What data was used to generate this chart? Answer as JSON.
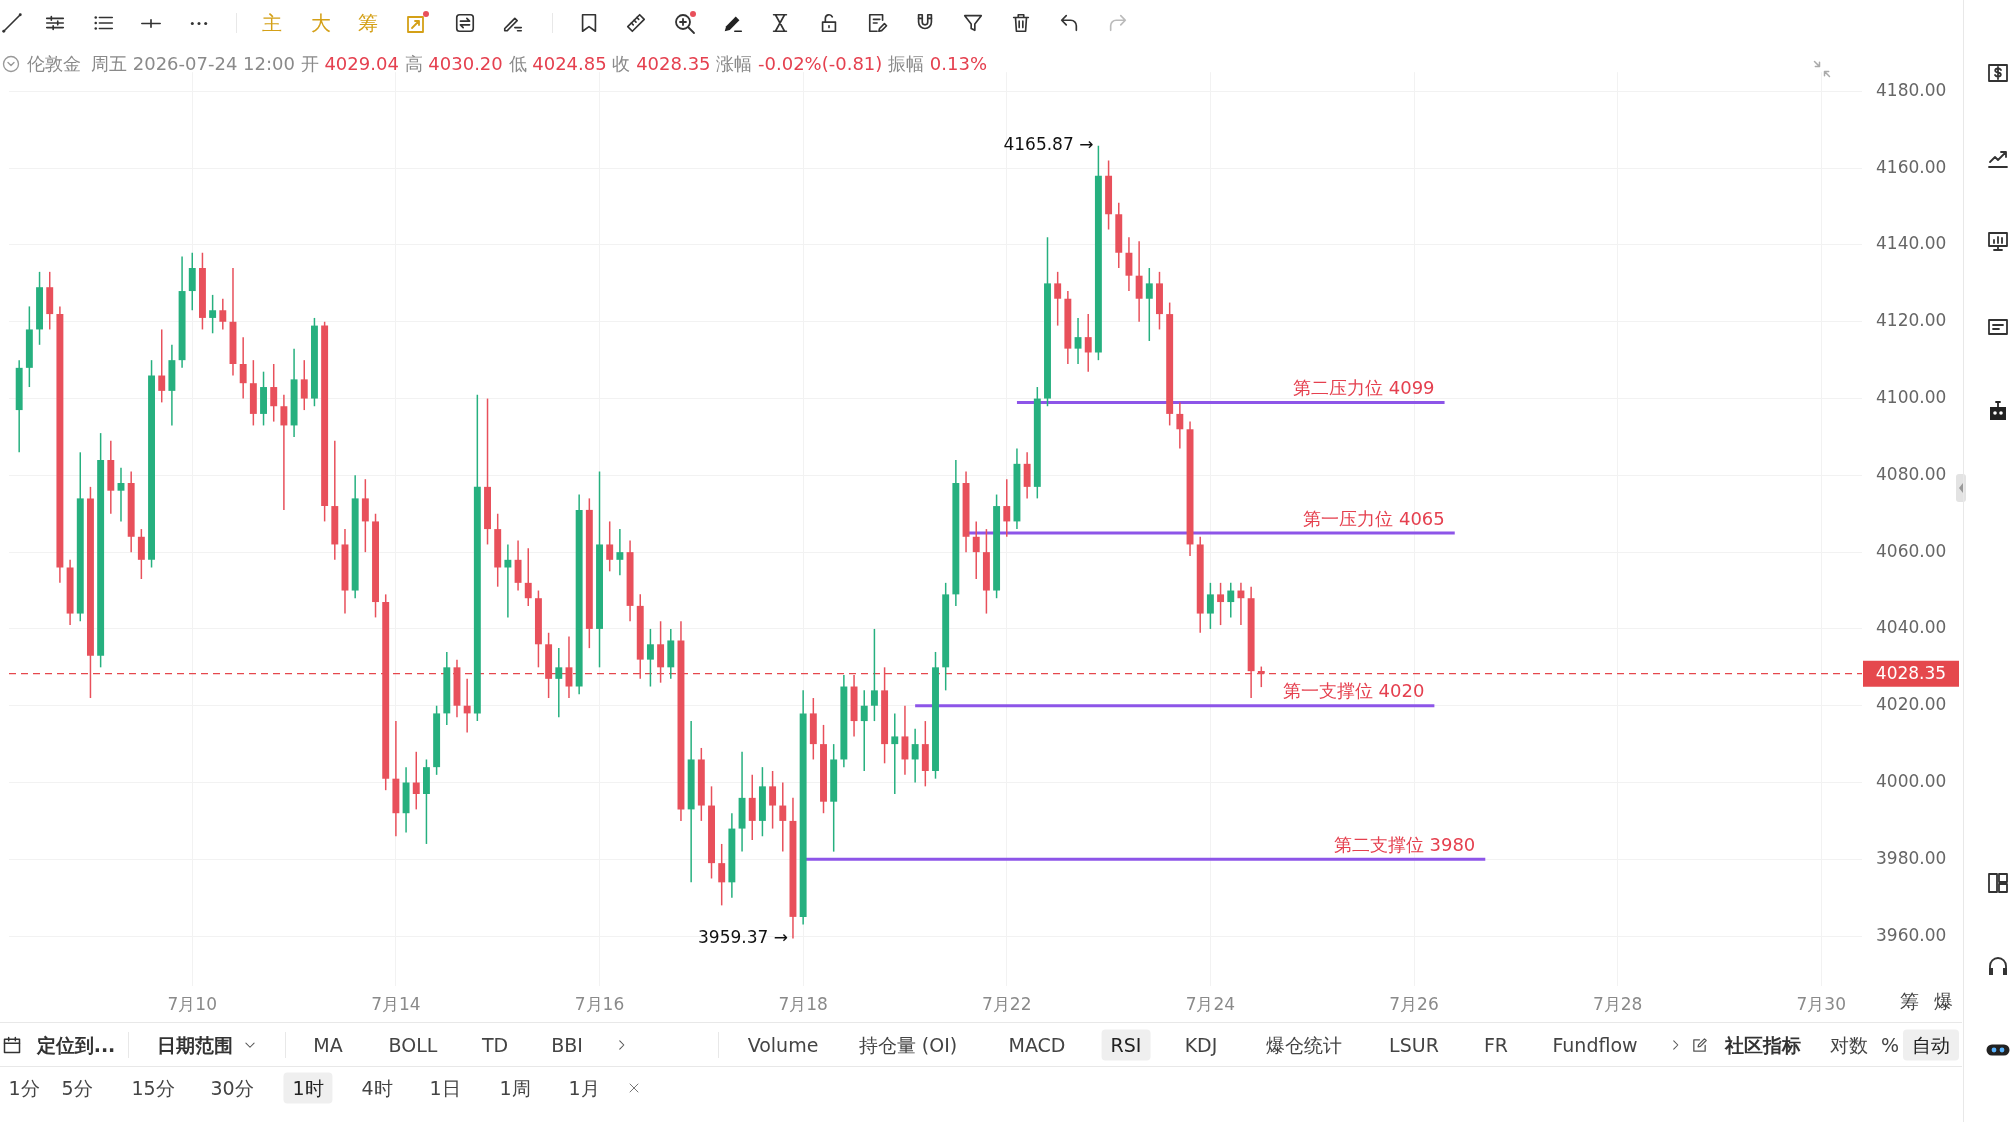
{
  "chart_data": {
    "type": "candlestick",
    "title": "伦敦金",
    "subtitle": "周五 2026-07-24 12:00 开 4029.04 高 4030.20 低 4024.85 收 4028.35 涨幅 -0.02%(-0.81) 振幅 0.13%",
    "categories": [
      null,
      null,
      null,
      null,
      null,
      null,
      null,
      null,
      null,
      null,
      null,
      null,
      null,
      null,
      null,
      null,
      null,
      null,
      "7月10",
      null,
      null,
      null,
      null,
      null,
      null,
      null,
      null,
      null,
      null,
      null,
      null,
      null,
      null,
      null,
      null,
      null,
      null,
      null,
      "7月14",
      null,
      null,
      null,
      null,
      null,
      null,
      null,
      null,
      null,
      null,
      null,
      null,
      null,
      null,
      null,
      null,
      null,
      null,
      null,
      "7月16",
      null,
      null,
      null,
      null,
      null,
      null,
      null,
      null,
      null,
      null,
      null,
      null,
      null,
      null,
      null,
      null,
      null,
      null,
      null,
      "7月18",
      null,
      null,
      null,
      null,
      null,
      null,
      null,
      null,
      null,
      null,
      null,
      null,
      null,
      null,
      null,
      null,
      null,
      null,
      null,
      "7月22",
      null,
      null,
      null,
      null,
      null,
      null,
      null,
      null,
      null,
      null,
      null,
      null,
      null,
      null,
      null,
      null,
      null,
      null,
      null,
      "7月24",
      null,
      null,
      null,
      null,
      null,
      null,
      null,
      null,
      null,
      null,
      null,
      null,
      null,
      null,
      null,
      null,
      null,
      null,
      null,
      "7月26",
      null,
      null,
      null,
      null,
      null,
      null,
      null,
      null,
      null,
      null,
      null,
      null,
      null,
      null,
      null,
      null,
      null,
      null,
      null,
      "7月28",
      null,
      null,
      null,
      null,
      null,
      null,
      null,
      null,
      null,
      null,
      null,
      null,
      null,
      null,
      null,
      null,
      null,
      null,
      null,
      "7月30",
      null,
      null,
      null,
      null
    ],
    "ohlc": [
      null,
      [
        4097,
        4110,
        4086,
        4108
      ],
      [
        4108,
        4124,
        4103,
        4118
      ],
      [
        4118,
        4133,
        4114,
        4129
      ],
      [
        4129,
        4133,
        4118,
        4122
      ],
      [
        4122,
        4124,
        4052,
        4056
      ],
      [
        4056,
        4058,
        4041,
        4044
      ],
      [
        4044,
        4086,
        4042,
        4074
      ],
      [
        4074,
        4077,
        4022,
        4033
      ],
      [
        4033,
        4091,
        4030,
        4084
      ],
      [
        4084,
        4089,
        4070,
        4076
      ],
      [
        4076,
        4082,
        4068,
        4078
      ],
      [
        4078,
        4081,
        4060,
        4064
      ],
      [
        4064,
        4066,
        4053,
        4058
      ],
      [
        4058,
        4110,
        4056,
        4106
      ],
      [
        4106,
        4118,
        4099,
        4102
      ],
      [
        4102,
        4114,
        4093,
        4110
      ],
      [
        4110,
        4137,
        4108,
        4128
      ],
      [
        4128,
        4138,
        4123,
        4134
      ],
      [
        4134,
        4138,
        4118,
        4121
      ],
      [
        4121,
        4127,
        4117,
        4123
      ],
      [
        4123,
        4126,
        4118,
        4120
      ],
      [
        4120,
        4134,
        4106,
        4109
      ],
      [
        4109,
        4116,
        4100,
        4104
      ],
      [
        4104,
        4110,
        4093,
        4096
      ],
      [
        4096,
        4107,
        4093,
        4103
      ],
      [
        4103,
        4109,
        4094,
        4098
      ],
      [
        4098,
        4101,
        4071,
        4093
      ],
      [
        4093,
        4113,
        4090,
        4105
      ],
      [
        4105,
        4110,
        4097,
        4100
      ],
      [
        4100,
        4121,
        4098,
        4119
      ],
      [
        4119,
        4120,
        4068,
        4072
      ],
      [
        4072,
        4089,
        4058,
        4062
      ],
      [
        4062,
        4066,
        4044,
        4050
      ],
      [
        4050,
        4080,
        4048,
        4074
      ],
      [
        4074,
        4079,
        4060,
        4068
      ],
      [
        4068,
        4070,
        4043,
        4047
      ],
      [
        4047,
        4049,
        3998,
        4001
      ],
      [
        4001,
        4016,
        3986,
        3992
      ],
      [
        3992,
        4004,
        3987,
        4000
      ],
      [
        4000,
        4008,
        3993,
        3997
      ],
      [
        3997,
        4006,
        3984,
        4004
      ],
      [
        4004,
        4020,
        4002,
        4018
      ],
      [
        4018,
        4034,
        4015,
        4030
      ],
      [
        4030,
        4032,
        4017,
        4020
      ],
      [
        4020,
        4027,
        4013,
        4018
      ],
      [
        4018,
        4101,
        4016,
        4077
      ],
      [
        4077,
        4100,
        4062,
        4066
      ],
      [
        4066,
        4070,
        4051,
        4056
      ],
      [
        4056,
        4062,
        4043,
        4058
      ],
      [
        4058,
        4063,
        4050,
        4052
      ],
      [
        4052,
        4061,
        4046,
        4048
      ],
      [
        4048,
        4050,
        4030,
        4036
      ],
      [
        4036,
        4039,
        4022,
        4027
      ],
      [
        4027,
        4035,
        4017,
        4030
      ],
      [
        4030,
        4038,
        4022,
        4025
      ],
      [
        4025,
        4075,
        4023,
        4071
      ],
      [
        4071,
        4074,
        4035,
        4040
      ],
      [
        4040,
        4081,
        4030,
        4062
      ],
      [
        4062,
        4068,
        4055,
        4058
      ],
      [
        4058,
        4066,
        4054,
        4060
      ],
      [
        4060,
        4063,
        4042,
        4046
      ],
      [
        4046,
        4049,
        4027,
        4032
      ],
      [
        4032,
        4040,
        4025,
        4036
      ],
      [
        4036,
        4042,
        4026,
        4030
      ],
      [
        4030,
        4040,
        4027,
        4037
      ],
      [
        4037,
        4042,
        3990,
        3993
      ],
      [
        3993,
        4016,
        3974,
        4006
      ],
      [
        4006,
        4009,
        3990,
        3994
      ],
      [
        3994,
        3999,
        3975,
        3979
      ],
      [
        3979,
        3984,
        3968,
        3974
      ],
      [
        3974,
        3992,
        3970,
        3988
      ],
      [
        3988,
        4008,
        3982,
        3996
      ],
      [
        3996,
        4002,
        3985,
        3990
      ],
      [
        3990,
        4004,
        3986,
        3999
      ],
      [
        3999,
        4003,
        3988,
        3994
      ],
      [
        3994,
        4000,
        3982,
        3990
      ],
      [
        3990,
        3996,
        3959.37,
        3965
      ],
      [
        3965,
        4024,
        3963,
        4018
      ],
      [
        4018,
        4022,
        4006,
        4010
      ],
      [
        4010,
        4015,
        3992,
        3995
      ],
      [
        3995,
        4010,
        3982,
        4006
      ],
      [
        4006,
        4028,
        4004,
        4025
      ],
      [
        4025,
        4028,
        4012,
        4016
      ],
      [
        4016,
        4024,
        4003,
        4020
      ],
      [
        4020,
        4040,
        4016,
        4024
      ],
      [
        4024,
        4030,
        4005,
        4010
      ],
      [
        4010,
        4018,
        3997,
        4012
      ],
      [
        4012,
        4020,
        4002,
        4006
      ],
      [
        4006,
        4014,
        4000,
        4010
      ],
      [
        4010,
        4016,
        3999,
        4003
      ],
      [
        4003,
        4034,
        4001,
        4030
      ],
      [
        4030,
        4052,
        4024,
        4049
      ],
      [
        4049,
        4084,
        4046,
        4078
      ],
      [
        4078,
        4081,
        4060,
        4064
      ],
      [
        4064,
        4068,
        4053,
        4060
      ],
      [
        4060,
        4066,
        4044,
        4050
      ],
      [
        4050,
        4075,
        4048,
        4072
      ],
      [
        4072,
        4079,
        4064,
        4068
      ],
      [
        4068,
        4087,
        4066,
        4083
      ],
      [
        4083,
        4086,
        4074,
        4077
      ],
      [
        4077,
        4103,
        4074,
        4100
      ],
      [
        4100,
        4142,
        4098,
        4130
      ],
      [
        4130,
        4133,
        4119,
        4126
      ],
      [
        4126,
        4128,
        4109,
        4113
      ],
      [
        4113,
        4121,
        4109,
        4116
      ],
      [
        4116,
        4122,
        4107,
        4112
      ],
      [
        4112,
        4165.87,
        4110,
        4158
      ],
      [
        4158,
        4162,
        4144,
        4148
      ],
      [
        4148,
        4151,
        4134,
        4138
      ],
      [
        4138,
        4142,
        4128,
        4132
      ],
      [
        4132,
        4141,
        4120,
        4126
      ],
      [
        4126,
        4134,
        4115,
        4130
      ],
      [
        4130,
        4133,
        4118,
        4122
      ],
      [
        4122,
        4125,
        4093,
        4096
      ],
      [
        4096,
        4099,
        4087,
        4092
      ],
      [
        4092,
        4094,
        4059,
        4062
      ],
      [
        4062,
        4064,
        4039,
        4044
      ],
      [
        4044,
        4052,
        4040,
        4049
      ],
      [
        4049,
        4052,
        4041,
        4047
      ],
      [
        4047,
        4052,
        4043,
        4050
      ],
      [
        4050,
        4052,
        4041,
        4048
      ],
      [
        4048,
        4051,
        4022,
        4029
      ],
      [
        4029.04,
        4030.2,
        4024.85,
        4028.35
      ],
      null,
      null,
      null,
      null,
      null,
      null,
      null,
      null,
      null,
      null,
      null,
      null,
      null,
      null,
      null,
      null,
      null,
      null,
      null,
      null,
      null,
      null,
      null,
      null,
      null,
      null,
      null,
      null,
      null,
      null,
      null,
      null,
      null,
      null,
      null,
      null,
      null,
      null,
      null,
      null,
      null,
      null,
      null,
      null,
      null,
      null,
      null,
      null,
      null,
      null,
      null,
      null,
      null,
      null,
      null,
      null,
      null,
      null,
      null
    ],
    "series": [
      {
        "type": "line",
        "name": "第二压力位 4099",
        "color": "#8d55e8",
        "values": [
          null,
          null,
          null,
          null,
          null,
          null,
          null,
          null,
          null,
          null,
          null,
          null,
          null,
          null,
          null,
          null,
          null,
          null,
          null,
          null,
          null,
          null,
          null,
          null,
          null,
          null,
          null,
          null,
          null,
          null,
          null,
          null,
          null,
          null,
          null,
          null,
          null,
          null,
          null,
          null,
          null,
          null,
          null,
          null,
          null,
          null,
          null,
          null,
          null,
          null,
          null,
          null,
          null,
          null,
          null,
          null,
          null,
          null,
          null,
          null,
          null,
          null,
          null,
          null,
          null,
          null,
          null,
          null,
          null,
          null,
          null,
          null,
          null,
          null,
          null,
          null,
          null,
          null,
          null,
          null,
          null,
          null,
          null,
          null,
          null,
          null,
          null,
          null,
          null,
          null,
          null,
          null,
          null,
          null,
          null,
          null,
          null,
          null,
          null,
          4099,
          4099,
          4099,
          4099,
          4099,
          4099,
          4099,
          4099,
          4099,
          4099,
          4099,
          4099,
          4099,
          4099,
          4099,
          4099,
          4099,
          4099,
          4099,
          4099,
          4099,
          4099,
          4099,
          4099,
          4099,
          4099,
          4099,
          4099,
          4099,
          4099,
          4099,
          4099,
          4099,
          4099,
          4099,
          4099,
          4099,
          4099,
          4099,
          4099,
          4099,
          4099,
          4099,
          null,
          null,
          null,
          null,
          null,
          null,
          null,
          null,
          null,
          null,
          null,
          null,
          null,
          null,
          null,
          null,
          null,
          null,
          null,
          null,
          null,
          null,
          null,
          null,
          null,
          null,
          null,
          null,
          null,
          null,
          null,
          null,
          null,
          null,
          null,
          null,
          null,
          null,
          null,
          null,
          null
        ]
      },
      {
        "type": "line",
        "name": "第一压力位 4065",
        "color": "#8d55e8",
        "values": [
          null,
          null,
          null,
          null,
          null,
          null,
          null,
          null,
          null,
          null,
          null,
          null,
          null,
          null,
          null,
          null,
          null,
          null,
          null,
          null,
          null,
          null,
          null,
          null,
          null,
          null,
          null,
          null,
          null,
          null,
          null,
          null,
          null,
          null,
          null,
          null,
          null,
          null,
          null,
          null,
          null,
          null,
          null,
          null,
          null,
          null,
          null,
          null,
          null,
          null,
          null,
          null,
          null,
          null,
          null,
          null,
          null,
          null,
          null,
          null,
          null,
          null,
          null,
          null,
          null,
          null,
          null,
          null,
          null,
          null,
          null,
          null,
          null,
          null,
          null,
          null,
          null,
          null,
          null,
          null,
          null,
          null,
          null,
          null,
          null,
          null,
          null,
          null,
          null,
          null,
          null,
          null,
          null,
          null,
          4065,
          4065,
          4065,
          4065,
          4065,
          4065,
          4065,
          4065,
          4065,
          4065,
          4065,
          4065,
          4065,
          4065,
          4065,
          4065,
          4065,
          4065,
          4065,
          4065,
          4065,
          4065,
          4065,
          4065,
          4065,
          4065,
          4065,
          4065,
          4065,
          4065,
          4065,
          4065,
          4065,
          4065,
          4065,
          4065,
          4065,
          4065,
          4065,
          4065,
          4065,
          4065,
          4065,
          4065,
          4065,
          4065,
          4065,
          4065,
          4065,
          null,
          null,
          null,
          null,
          null,
          null,
          null,
          null,
          null,
          null,
          null,
          null,
          null,
          null,
          null,
          null,
          null,
          null,
          null,
          null,
          null,
          null,
          null,
          null,
          null,
          null,
          null,
          null,
          null,
          null,
          null,
          null,
          null,
          null,
          null,
          null,
          null,
          null,
          null,
          null
        ]
      },
      {
        "type": "line",
        "name": "第一支撑位 4020",
        "color": "#8d55e8",
        "values": [
          null,
          null,
          null,
          null,
          null,
          null,
          null,
          null,
          null,
          null,
          null,
          null,
          null,
          null,
          null,
          null,
          null,
          null,
          null,
          null,
          null,
          null,
          null,
          null,
          null,
          null,
          null,
          null,
          null,
          null,
          null,
          null,
          null,
          null,
          null,
          null,
          null,
          null,
          null,
          null,
          null,
          null,
          null,
          null,
          null,
          null,
          null,
          null,
          null,
          null,
          null,
          null,
          null,
          null,
          null,
          null,
          null,
          null,
          null,
          null,
          null,
          null,
          null,
          null,
          null,
          null,
          null,
          null,
          null,
          null,
          null,
          null,
          null,
          null,
          null,
          null,
          null,
          null,
          null,
          null,
          null,
          null,
          null,
          null,
          null,
          null,
          null,
          null,
          null,
          4020,
          4020,
          4020,
          4020,
          4020,
          4020,
          4020,
          4020,
          4020,
          4020,
          4020,
          4020,
          4020,
          4020,
          4020,
          4020,
          4020,
          4020,
          4020,
          4020,
          4020,
          4020,
          4020,
          4020,
          4020,
          4020,
          4020,
          4020,
          4020,
          4020,
          4020,
          4020,
          4020,
          4020,
          4020,
          4020,
          4020,
          4020,
          4020,
          4020,
          4020,
          4020,
          4020,
          4020,
          4020,
          4020,
          4020,
          4020,
          4020,
          4020,
          4020,
          4020,
          null,
          null,
          null,
          null,
          null,
          null,
          null,
          null,
          null,
          null,
          null,
          null,
          null,
          null,
          null,
          null,
          null,
          null,
          null,
          null,
          null,
          null,
          null,
          null,
          null,
          null,
          null,
          null,
          null,
          null,
          null,
          null,
          null,
          null,
          null,
          null,
          null,
          null,
          null,
          null,
          null,
          null
        ]
      },
      {
        "type": "line",
        "name": "第二支撑位 3980",
        "color": "#8d55e8",
        "values": [
          null,
          null,
          null,
          null,
          null,
          null,
          null,
          null,
          null,
          null,
          null,
          null,
          null,
          null,
          null,
          null,
          null,
          null,
          null,
          null,
          null,
          null,
          null,
          null,
          null,
          null,
          null,
          null,
          null,
          null,
          null,
          null,
          null,
          null,
          null,
          null,
          null,
          null,
          null,
          null,
          null,
          null,
          null,
          null,
          null,
          null,
          null,
          null,
          null,
          null,
          null,
          null,
          null,
          null,
          null,
          null,
          null,
          null,
          null,
          null,
          null,
          null,
          null,
          null,
          null,
          null,
          null,
          null,
          null,
          null,
          null,
          null,
          null,
          null,
          null,
          null,
          null,
          null,
          3980,
          3980,
          3980,
          3980,
          3980,
          3980,
          3980,
          3980,
          3980,
          3980,
          3980,
          3980,
          3980,
          3980,
          3980,
          3980,
          3980,
          3980,
          3980,
          3980,
          3980,
          3980,
          3980,
          3980,
          3980,
          3980,
          3980,
          3980,
          3980,
          3980,
          3980,
          3980,
          3980,
          3980,
          3980,
          3980,
          3980,
          3980,
          3980,
          3980,
          3980,
          3980,
          3980,
          3980,
          3980,
          3980,
          3980,
          3980,
          3980,
          3980,
          3980,
          3980,
          3980,
          3980,
          3980,
          3980,
          3980,
          3980,
          3980,
          3980,
          3980,
          3980,
          3980,
          3980,
          3980,
          3980,
          3980,
          3980,
          null,
          null,
          null,
          null,
          null,
          null,
          null,
          null,
          null,
          null,
          null,
          null,
          null,
          null,
          null,
          null,
          null,
          null,
          null,
          null,
          null,
          null,
          null,
          null,
          null,
          null,
          null,
          null,
          null,
          null,
          null,
          null,
          null,
          null,
          null,
          null,
          null
        ]
      }
    ],
    "ylim": [
      3947,
      4185
    ],
    "yticks": [
      {
        "value": 3960,
        "label": "3960.00"
      },
      {
        "value": 3980,
        "label": "3980.00"
      },
      {
        "value": 4000,
        "label": "4000.00"
      },
      {
        "value": 4020,
        "label": "4020.00"
      },
      {
        "value": 4040,
        "label": "4040.00"
      },
      {
        "value": 4060,
        "label": "4060.00"
      },
      {
        "value": 4080,
        "label": "4080.00"
      },
      {
        "value": 4100,
        "label": "4100.00"
      },
      {
        "value": 4120,
        "label": "4120.00"
      },
      {
        "value": 4140,
        "label": "4140.00"
      },
      {
        "value": 4160,
        "label": "4160.00"
      },
      {
        "value": 4180,
        "label": "4180.00"
      }
    ],
    "grid": true,
    "ref_lines": [
      {
        "axis": "y",
        "value": 4028.35,
        "label": "4028.35",
        "color": "#e5484d",
        "line_style": "dashed"
      }
    ],
    "annotations": [
      "主",
      "大",
      "筹",
      "筹",
      "爆",
      "定位到...",
      "日期范围",
      "MA",
      "BOLL",
      "TD",
      "BBI",
      "Volume",
      "持仓量 (OI)",
      "MACD",
      "RSI",
      "KDJ",
      "爆仓统计",
      "LSUR",
      "FR",
      "Fundflow",
      "社区指标",
      "对数",
      "%",
      "自动",
      "1分",
      "5分",
      "15分",
      "30分",
      "1时",
      "4时",
      "1日",
      "1周",
      "1月",
      "4165.87 →",
      "3959.37 →"
    ]
  }
}
